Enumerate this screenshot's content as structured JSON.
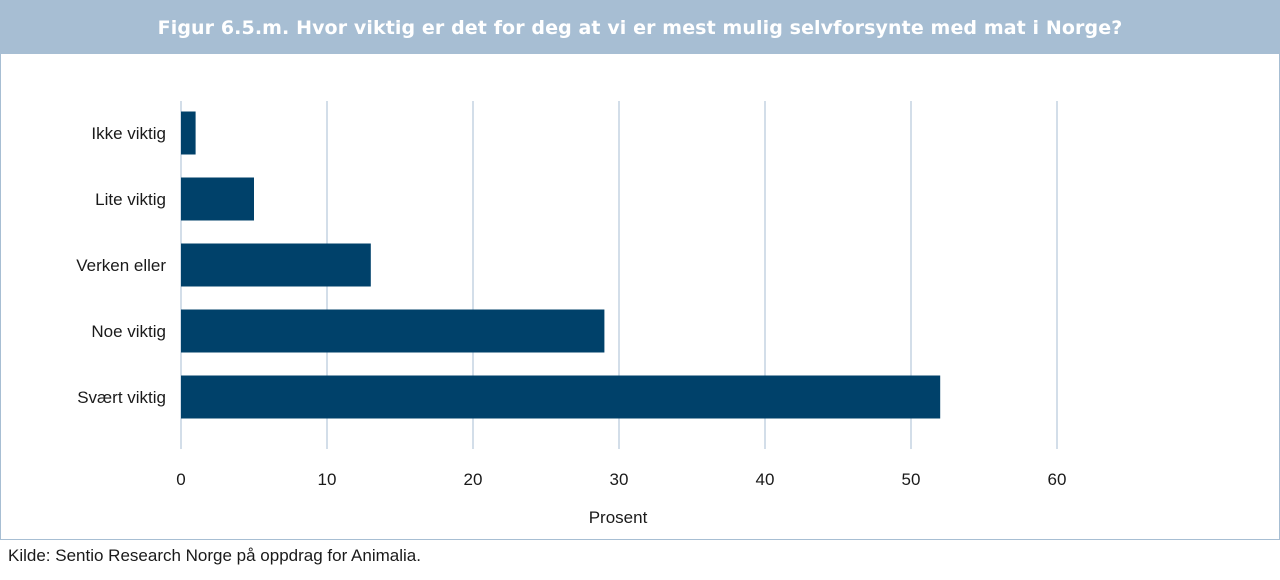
{
  "title": "Figur 6.5.m. Hvor viktig er det for deg at vi er mest mulig selvforsynte med mat i Norge?",
  "source": "Kilde: Sentio Research Norge på oppdrag for Animalia.",
  "colors": {
    "bar": "#00416a",
    "grid": "#a7bed3",
    "title_bg": "#a7bed3",
    "text": "#1a1a1a"
  },
  "chart_data": {
    "type": "bar",
    "orientation": "horizontal",
    "categories": [
      "Ikke viktig",
      "Lite viktig",
      "Verken eller",
      "Noe viktig",
      "Svært viktig"
    ],
    "values": [
      1,
      5,
      13,
      29,
      52
    ],
    "xlabel": "Prosent",
    "ylabel": "",
    "xlim": [
      0,
      60
    ],
    "xticks": [
      0,
      10,
      20,
      30,
      40,
      50,
      60
    ],
    "grid": true
  }
}
